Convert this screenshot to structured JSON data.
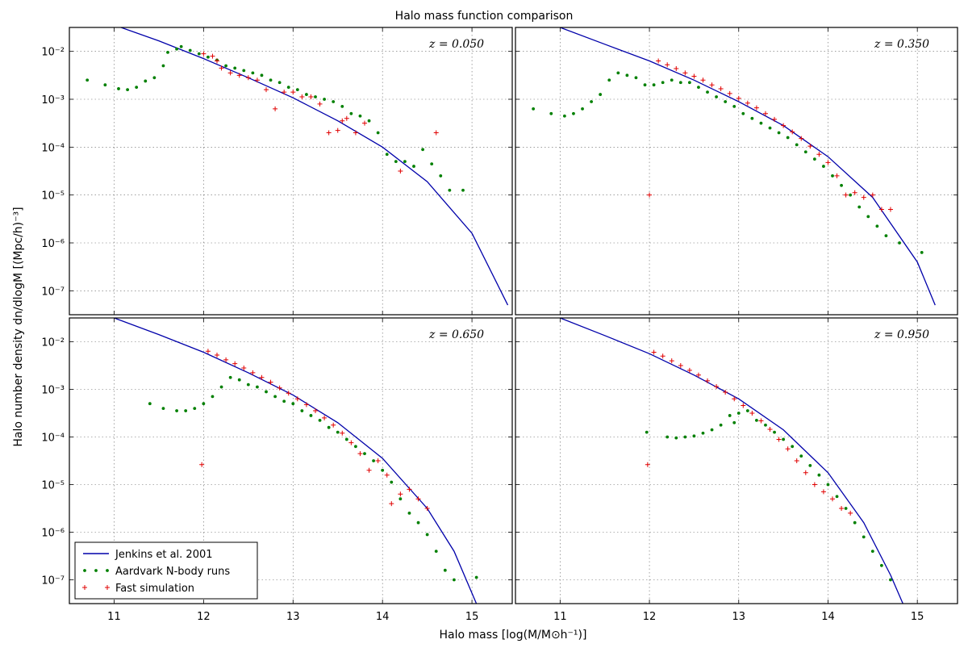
{
  "figure": {
    "title": "Halo mass function comparison",
    "xlabel": "Halo mass [log(M/M⊙h⁻¹)]",
    "ylabel": "Halo number density dn/dlogM [(Mpc/h)⁻³]"
  },
  "legend": {
    "placement": "lower-left",
    "entries": [
      {
        "label": "Jenkins et al. 2001",
        "marker": "line",
        "color": "#0000aa"
      },
      {
        "label": "Aardvark N-body runs",
        "marker": "dot",
        "color": "#008000"
      },
      {
        "label": "Fast simulation",
        "marker": "plus",
        "color": "#e00000"
      }
    ]
  },
  "chart_data": [
    {
      "type": "scatter",
      "panel_label": "z = 0.050",
      "x_ticks": [
        "11",
        "12",
        "13",
        "14",
        "15"
      ],
      "y_ticks": [
        "10⁻⁷",
        "10⁻⁶",
        "10⁻⁵",
        "10⁻⁴",
        "10⁻³",
        "10⁻²"
      ],
      "xlim": [
        10.5,
        15.45
      ],
      "ylim_log10": [
        -7.5,
        -1.5
      ],
      "y_scale": "log",
      "grid": true,
      "series": [
        {
          "name": "Jenkins et al. 2001",
          "kind": "line",
          "color": "#0000aa",
          "x": [
            11.0,
            11.5,
            12.0,
            12.5,
            13.0,
            13.5,
            14.0,
            14.5,
            15.0,
            15.4
          ],
          "log10y": [
            -1.45,
            -1.78,
            -2.15,
            -2.55,
            -2.97,
            -3.45,
            -4.0,
            -4.72,
            -5.8,
            -7.3
          ]
        },
        {
          "name": "Aardvark N-body runs",
          "kind": "dot",
          "color": "#008000",
          "x": [
            10.7,
            10.9,
            11.05,
            11.15,
            11.25,
            11.35,
            11.45,
            11.55,
            11.6,
            11.7,
            11.75,
            11.85,
            11.95,
            12.05,
            12.15,
            12.25,
            12.35,
            12.45,
            12.55,
            12.65,
            12.75,
            12.85,
            12.95,
            13.05,
            13.15,
            13.25,
            13.35,
            13.45,
            13.55,
            13.65,
            13.75,
            13.85,
            13.95,
            14.05,
            14.15,
            14.25,
            14.35,
            14.45,
            14.55,
            14.65,
            14.75,
            14.9
          ],
          "log10y": [
            -2.6,
            -2.7,
            -2.78,
            -2.8,
            -2.75,
            -2.62,
            -2.55,
            -2.3,
            -2.02,
            -1.95,
            -1.9,
            -1.98,
            -2.05,
            -2.12,
            -2.18,
            -2.3,
            -2.35,
            -2.4,
            -2.45,
            -2.5,
            -2.6,
            -2.65,
            -2.75,
            -2.8,
            -2.9,
            -2.95,
            -3.0,
            -3.05,
            -3.15,
            -3.3,
            -3.35,
            -3.45,
            -3.7,
            -4.15,
            -4.3,
            -4.3,
            -4.4,
            -4.05,
            -4.35,
            -4.6,
            -4.9,
            -4.9
          ]
        },
        {
          "name": "Fast simulation",
          "kind": "plus",
          "color": "#e00000",
          "x": [
            12.0,
            12.1,
            12.15,
            12.2,
            12.3,
            12.4,
            12.5,
            12.6,
            12.7,
            12.8,
            12.9,
            13.0,
            13.1,
            13.2,
            13.3,
            13.4,
            13.5,
            13.55,
            13.6,
            13.7,
            13.8,
            14.2,
            14.6
          ],
          "log10y": [
            -2.05,
            -2.1,
            -2.2,
            -2.35,
            -2.45,
            -2.5,
            -2.55,
            -2.6,
            -2.8,
            -3.2,
            -2.85,
            -2.85,
            -2.95,
            -2.95,
            -3.1,
            -3.7,
            -3.65,
            -3.45,
            -3.4,
            -3.7,
            -3.5,
            -4.5,
            -3.7
          ]
        }
      ]
    },
    {
      "type": "scatter",
      "panel_label": "z = 0.350",
      "x_ticks": [
        "11",
        "12",
        "13",
        "14",
        "15"
      ],
      "y_ticks": [
        "10⁻⁷",
        "10⁻⁶",
        "10⁻⁵",
        "10⁻⁴",
        "10⁻³",
        "10⁻²"
      ],
      "xlim": [
        10.5,
        15.45
      ],
      "ylim_log10": [
        -7.5,
        -1.5
      ],
      "y_scale": "log",
      "grid": true,
      "series": [
        {
          "name": "Jenkins et al. 2001",
          "kind": "line",
          "color": "#0000aa",
          "x": [
            11.0,
            11.5,
            12.0,
            12.5,
            13.0,
            13.5,
            14.0,
            14.5,
            15.0,
            15.2
          ],
          "log10y": [
            -1.5,
            -1.85,
            -2.2,
            -2.6,
            -3.05,
            -3.55,
            -4.2,
            -5.05,
            -6.4,
            -7.3
          ]
        },
        {
          "name": "Aardvark N-body runs",
          "kind": "dot",
          "color": "#008000",
          "x": [
            10.7,
            10.9,
            11.05,
            11.15,
            11.25,
            11.35,
            11.45,
            11.55,
            11.65,
            11.75,
            11.85,
            11.95,
            12.05,
            12.15,
            12.25,
            12.35,
            12.45,
            12.55,
            12.65,
            12.75,
            12.85,
            12.95,
            13.05,
            13.15,
            13.25,
            13.35,
            13.45,
            13.55,
            13.65,
            13.75,
            13.85,
            13.95,
            14.05,
            14.15,
            14.25,
            14.35,
            14.45,
            14.55,
            14.65,
            14.8,
            15.05
          ],
          "log10y": [
            -3.2,
            -3.3,
            -3.35,
            -3.3,
            -3.2,
            -3.05,
            -2.9,
            -2.6,
            -2.45,
            -2.5,
            -2.55,
            -2.7,
            -2.7,
            -2.65,
            -2.6,
            -2.65,
            -2.65,
            -2.75,
            -2.85,
            -2.95,
            -3.05,
            -3.15,
            -3.3,
            -3.4,
            -3.5,
            -3.6,
            -3.7,
            -3.8,
            -3.95,
            -4.1,
            -4.25,
            -4.4,
            -4.6,
            -4.8,
            -5.0,
            -5.25,
            -5.45,
            -5.65,
            -5.85,
            -6.0,
            -6.2
          ]
        },
        {
          "name": "Fast simulation",
          "kind": "plus",
          "color": "#e00000",
          "x": [
            12.0,
            12.1,
            12.2,
            12.3,
            12.4,
            12.5,
            12.6,
            12.7,
            12.8,
            12.9,
            13.0,
            13.1,
            13.2,
            13.3,
            13.4,
            13.5,
            13.6,
            13.7,
            13.8,
            13.9,
            14.0,
            14.1,
            14.2,
            14.3,
            14.4,
            14.5,
            14.6,
            14.7
          ],
          "log10y": [
            -5.0,
            -2.2,
            -2.28,
            -2.36,
            -2.45,
            -2.52,
            -2.6,
            -2.7,
            -2.78,
            -2.88,
            -2.98,
            -3.08,
            -3.18,
            -3.3,
            -3.42,
            -3.55,
            -3.68,
            -3.82,
            -3.98,
            -4.15,
            -4.32,
            -4.6,
            -5.0,
            -4.95,
            -5.05,
            -5.0,
            -5.3,
            -5.3
          ]
        }
      ]
    },
    {
      "type": "scatter",
      "panel_label": "z = 0.650",
      "x_ticks": [
        "11",
        "12",
        "13",
        "14",
        "15"
      ],
      "y_ticks": [
        "10⁻⁷",
        "10⁻⁶",
        "10⁻⁵",
        "10⁻⁴",
        "10⁻³",
        "10⁻²"
      ],
      "xlim": [
        10.5,
        15.45
      ],
      "ylim_log10": [
        -7.5,
        -1.5
      ],
      "y_scale": "log",
      "grid": true,
      "series": [
        {
          "name": "Jenkins et al. 2001",
          "kind": "line",
          "color": "#0000aa",
          "x": [
            11.0,
            11.5,
            12.0,
            12.5,
            13.0,
            13.5,
            14.0,
            14.5,
            14.8,
            15.05
          ],
          "log10y": [
            -1.5,
            -1.85,
            -2.22,
            -2.65,
            -3.12,
            -3.7,
            -4.45,
            -5.5,
            -6.4,
            -7.5
          ]
        },
        {
          "name": "Aardvark N-body runs",
          "kind": "dot",
          "color": "#008000",
          "x": [
            11.4,
            11.55,
            11.7,
            11.8,
            11.9,
            12.0,
            12.1,
            12.2,
            12.3,
            12.4,
            12.5,
            12.6,
            12.7,
            12.8,
            12.9,
            13.0,
            13.1,
            13.2,
            13.3,
            13.4,
            13.5,
            13.6,
            13.7,
            13.8,
            13.9,
            14.0,
            14.1,
            14.2,
            14.3,
            14.4,
            14.5,
            14.6,
            14.7,
            14.8,
            15.05
          ],
          "log10y": [
            -3.3,
            -3.4,
            -3.45,
            -3.45,
            -3.4,
            -3.3,
            -3.15,
            -2.95,
            -2.75,
            -2.8,
            -2.9,
            -2.95,
            -3.05,
            -3.15,
            -3.25,
            -3.3,
            -3.45,
            -3.55,
            -3.65,
            -3.8,
            -3.9,
            -4.05,
            -4.2,
            -4.35,
            -4.5,
            -4.7,
            -4.95,
            -5.3,
            -5.6,
            -5.8,
            -6.05,
            -6.4,
            -6.8,
            -7.0,
            -6.95
          ]
        },
        {
          "name": "Fast simulation",
          "kind": "plus",
          "color": "#e00000",
          "x": [
            11.98,
            12.05,
            12.15,
            12.25,
            12.35,
            12.45,
            12.55,
            12.65,
            12.75,
            12.85,
            12.95,
            13.05,
            13.15,
            13.25,
            13.35,
            13.45,
            13.55,
            13.65,
            13.75,
            13.85,
            13.95,
            14.05,
            14.1,
            14.2,
            14.3,
            14.4,
            14.5
          ],
          "log10y": [
            -4.58,
            -2.2,
            -2.28,
            -2.38,
            -2.46,
            -2.55,
            -2.65,
            -2.75,
            -2.85,
            -2.97,
            -3.08,
            -3.2,
            -3.32,
            -3.45,
            -3.6,
            -3.75,
            -3.92,
            -4.12,
            -4.35,
            -4.7,
            -4.5,
            -4.8,
            -5.4,
            -5.2,
            -5.1,
            -5.3,
            -5.5
          ]
        }
      ]
    },
    {
      "type": "scatter",
      "panel_label": "z = 0.950",
      "x_ticks": [
        "11",
        "12",
        "13",
        "14",
        "15"
      ],
      "y_ticks": [
        "10⁻⁷",
        "10⁻⁶",
        "10⁻⁵",
        "10⁻⁴",
        "10⁻³",
        "10⁻²"
      ],
      "xlim": [
        10.5,
        15.45
      ],
      "ylim_log10": [
        -7.5,
        -1.5
      ],
      "y_scale": "log",
      "grid": true,
      "series": [
        {
          "name": "Jenkins et al. 2001",
          "kind": "line",
          "color": "#0000aa",
          "x": [
            11.0,
            11.5,
            12.0,
            12.5,
            13.0,
            13.5,
            14.0,
            14.4,
            14.7,
            14.85
          ],
          "log10y": [
            -1.5,
            -1.87,
            -2.25,
            -2.7,
            -3.2,
            -3.85,
            -4.75,
            -5.8,
            -6.9,
            -7.55
          ]
        },
        {
          "name": "Aardvark N-body runs",
          "kind": "dot",
          "color": "#008000",
          "x": [
            11.97,
            12.2,
            12.3,
            12.4,
            12.5,
            12.6,
            12.7,
            12.8,
            12.9,
            12.95,
            13.0,
            13.1,
            13.2,
            13.3,
            13.4,
            13.5,
            13.6,
            13.7,
            13.8,
            13.9,
            14.0,
            14.1,
            14.2,
            14.3,
            14.4,
            14.5,
            14.6,
            14.7
          ],
          "log10y": [
            -3.9,
            -4.0,
            -4.02,
            -4.0,
            -3.98,
            -3.92,
            -3.85,
            -3.75,
            -3.55,
            -3.7,
            -3.5,
            -3.45,
            -3.65,
            -3.75,
            -3.9,
            -4.05,
            -4.2,
            -4.4,
            -4.6,
            -4.8,
            -5.0,
            -5.25,
            -5.5,
            -5.8,
            -6.1,
            -6.4,
            -6.7,
            -7.0
          ]
        },
        {
          "name": "Fast simulation",
          "kind": "plus",
          "color": "#e00000",
          "x": [
            11.98,
            12.05,
            12.15,
            12.25,
            12.35,
            12.45,
            12.55,
            12.65,
            12.75,
            12.85,
            12.95,
            13.05,
            13.15,
            13.25,
            13.35,
            13.45,
            13.55,
            13.65,
            13.75,
            13.85,
            13.95,
            14.05,
            14.15,
            14.25
          ],
          "log10y": [
            -4.58,
            -2.22,
            -2.3,
            -2.4,
            -2.5,
            -2.6,
            -2.7,
            -2.82,
            -2.94,
            -3.06,
            -3.2,
            -3.34,
            -3.5,
            -3.66,
            -3.84,
            -4.05,
            -4.25,
            -4.5,
            -4.75,
            -5.0,
            -5.15,
            -5.3,
            -5.5,
            -5.6
          ]
        }
      ]
    }
  ]
}
